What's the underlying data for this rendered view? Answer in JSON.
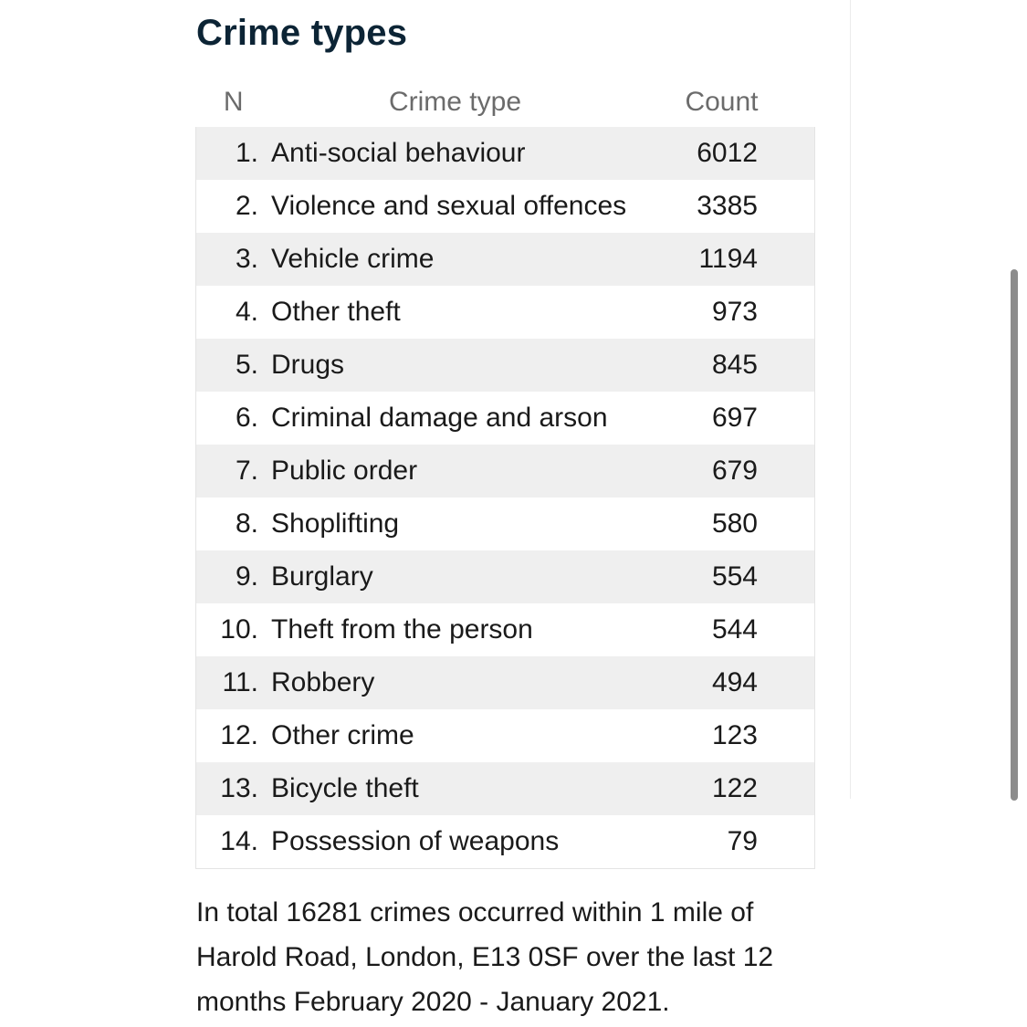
{
  "title": "Crime types",
  "table": {
    "headers": {
      "n": "N",
      "type": "Crime type",
      "count": "Count"
    },
    "rows": [
      {
        "n": "1.",
        "type": "Anti-social behaviour",
        "count": "6012"
      },
      {
        "n": "2.",
        "type": "Violence and sexual offences",
        "count": "3385"
      },
      {
        "n": "3.",
        "type": "Vehicle crime",
        "count": "1194"
      },
      {
        "n": "4.",
        "type": "Other theft",
        "count": "973"
      },
      {
        "n": "5.",
        "type": "Drugs",
        "count": "845"
      },
      {
        "n": "6.",
        "type": "Criminal damage and arson",
        "count": "697"
      },
      {
        "n": "7.",
        "type": "Public order",
        "count": "679"
      },
      {
        "n": "8.",
        "type": "Shoplifting",
        "count": "580"
      },
      {
        "n": "9.",
        "type": "Burglary",
        "count": "554"
      },
      {
        "n": "10.",
        "type": "Theft from the person",
        "count": "544"
      },
      {
        "n": "11.",
        "type": "Robbery",
        "count": "494"
      },
      {
        "n": "12.",
        "type": "Other crime",
        "count": "123"
      },
      {
        "n": "13.",
        "type": "Bicycle theft",
        "count": "122"
      },
      {
        "n": "14.",
        "type": "Possession of weapons",
        "count": "79"
      }
    ]
  },
  "summary": "In total 16281 crimes occurred within 1 mile of Harold Road, London, E13 0SF over the last 12 months February 2020 - January 2021."
}
